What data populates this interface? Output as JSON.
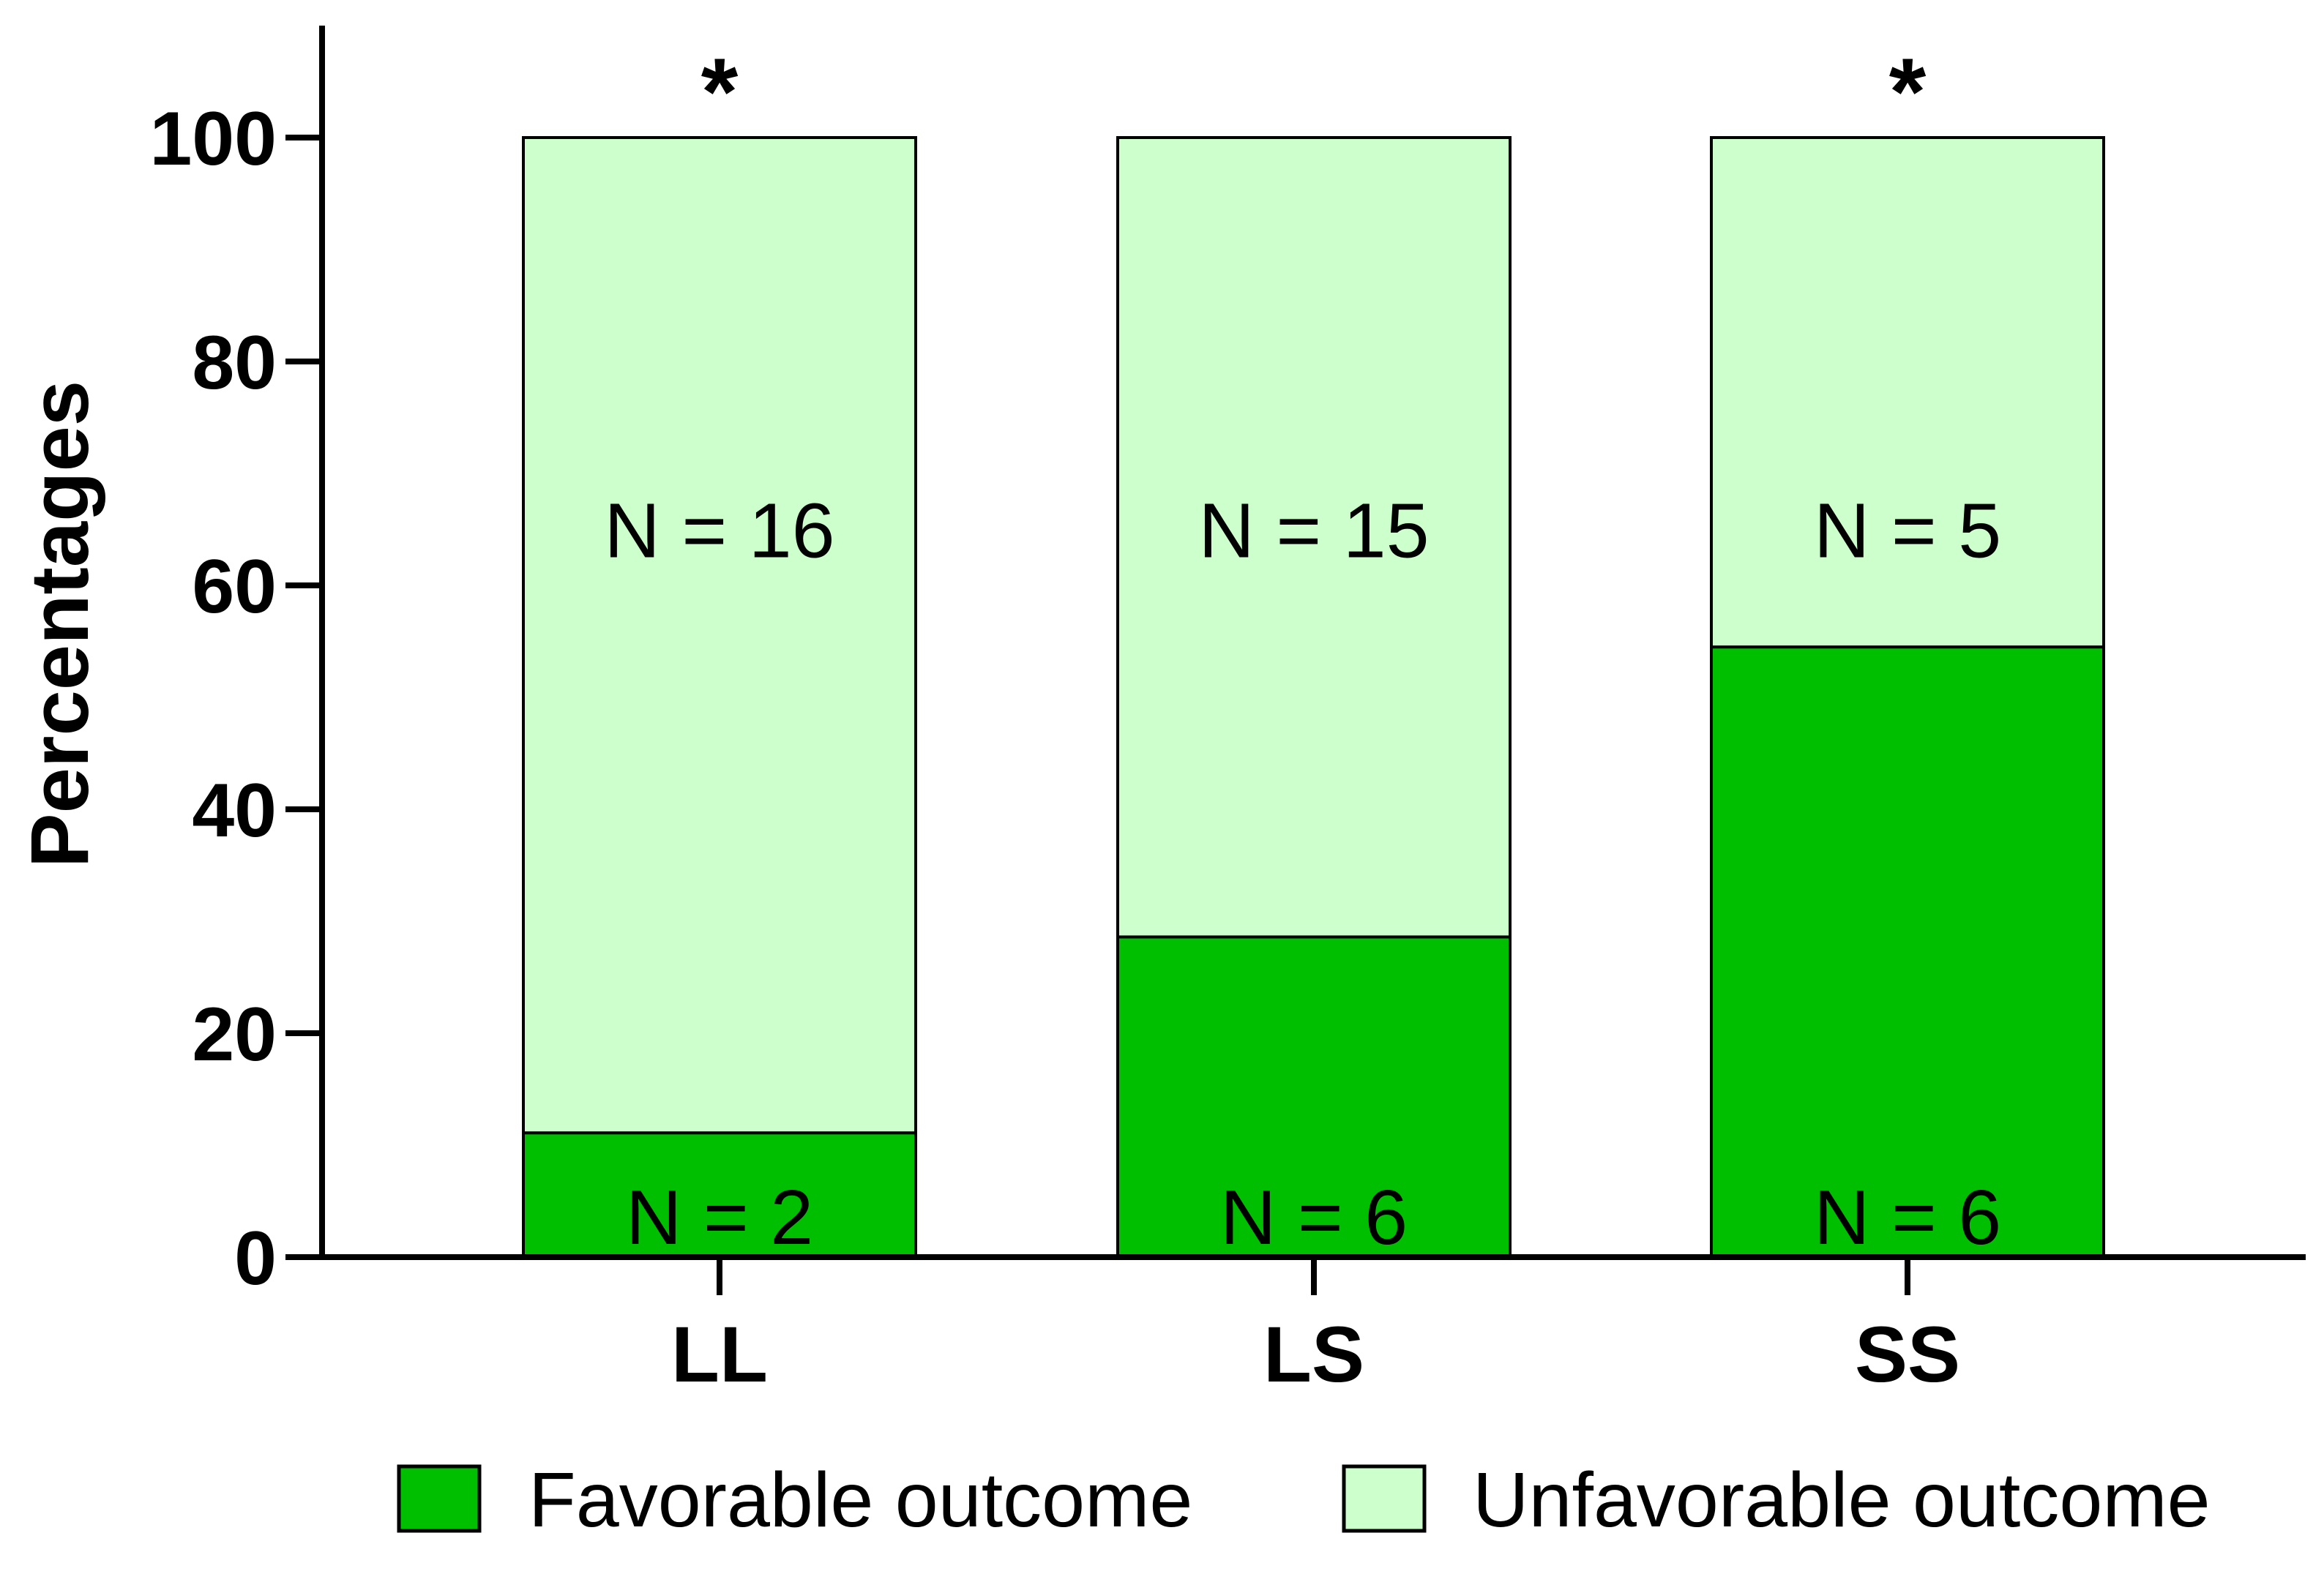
{
  "chart_data": {
    "type": "bar",
    "stacked": true,
    "ylabel": "Percentages",
    "xlabel": "",
    "ylim": [
      0,
      110
    ],
    "yticks": [
      0,
      20,
      40,
      60,
      80,
      100
    ],
    "grid": false,
    "legend_position": "bottom",
    "categories": [
      "LL",
      "LS",
      "SS"
    ],
    "significance": [
      "*",
      "",
      "*"
    ],
    "series": [
      {
        "name": "Favorable outcome",
        "color": "#00bf00",
        "values": [
          11.1,
          28.6,
          54.5
        ],
        "labels": [
          "N = 2",
          "N = 6",
          "N = 6"
        ]
      },
      {
        "name": "Unfavorable outcome",
        "color": "#ccffcc",
        "values": [
          88.9,
          71.4,
          45.5
        ],
        "labels": [
          "N = 16",
          "N = 15",
          "N = 5"
        ]
      }
    ]
  }
}
